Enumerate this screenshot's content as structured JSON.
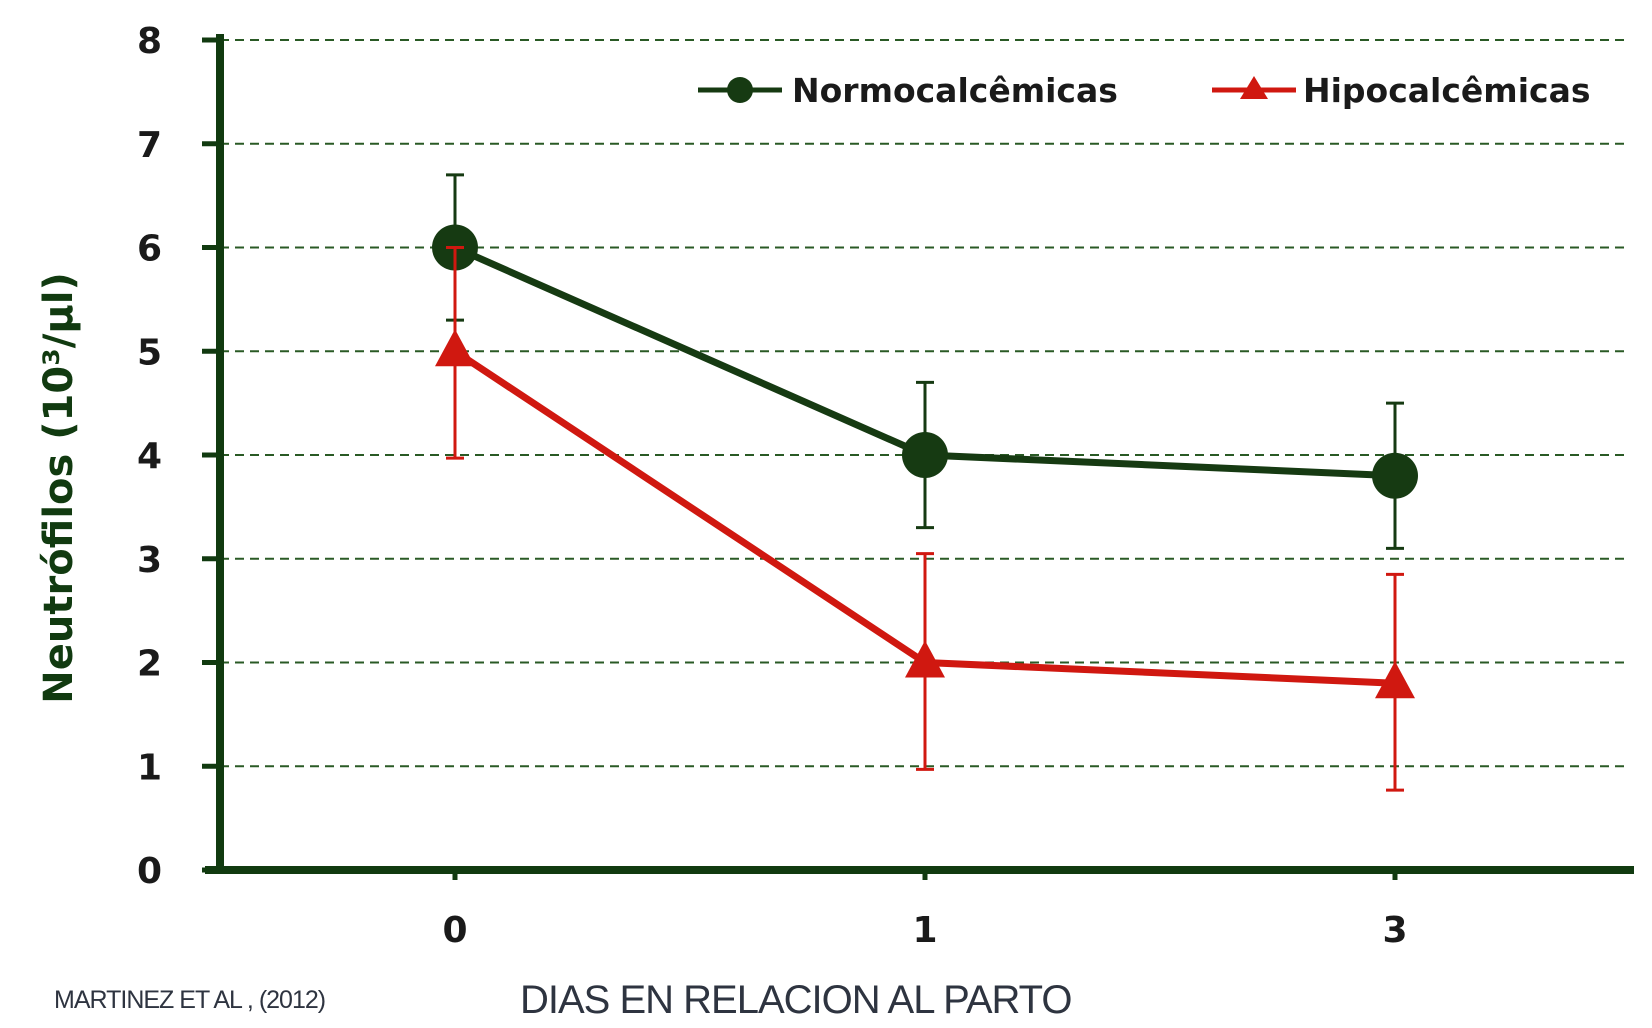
{
  "chart_data": {
    "type": "line",
    "title": "",
    "xlabel": "DIAS EN RELACION AL PARTO",
    "ylabel": "Neutrófilos (10³/µl)",
    "x": [
      "0",
      "1",
      "3"
    ],
    "ylim": [
      0,
      8
    ],
    "yticks": [
      0,
      1,
      2,
      3,
      4,
      5,
      6,
      7,
      8
    ],
    "grid": true,
    "legend_position": "top-right",
    "series": [
      {
        "name": "Normocalcêmicas",
        "values": [
          6.0,
          4.0,
          3.8
        ],
        "error_upper": [
          6.7,
          4.7,
          4.5
        ],
        "error_lower": [
          5.3,
          3.3,
          3.1
        ],
        "marker": "circle",
        "color": "#163a12"
      },
      {
        "name": "Hipocalcêmicas",
        "values": [
          5.0,
          2.0,
          1.8
        ],
        "error_upper": [
          6.0,
          3.05,
          2.85
        ],
        "error_lower": [
          3.97,
          0.97,
          0.77
        ],
        "marker": "triangle",
        "color": "#d01810"
      }
    ]
  },
  "footer": {
    "citation": "MARTINEZ ET AL , (2012)"
  },
  "colors": {
    "axis": "#113a10",
    "grid": "#2a5a25"
  }
}
